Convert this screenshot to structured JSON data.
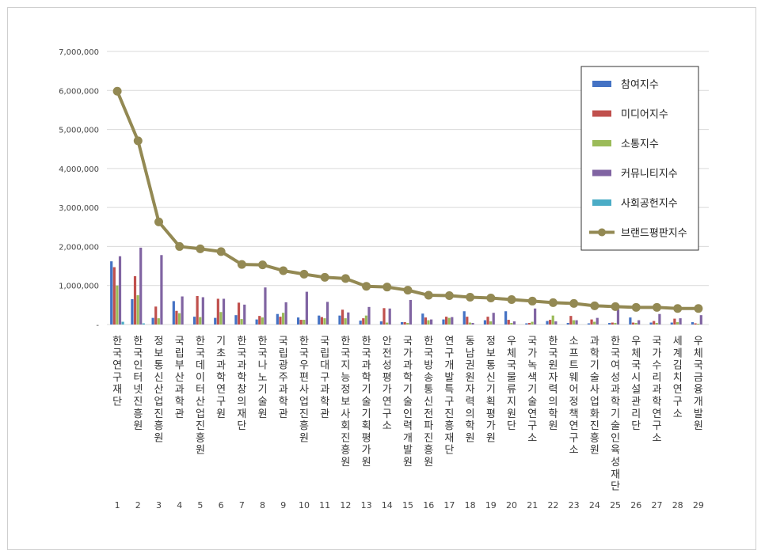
{
  "chart_data": {
    "type": "bar",
    "yticks": [
      "-",
      "1,000,000",
      "2,000,000",
      "3,000,000",
      "4,000,000",
      "5,000,000",
      "6,000,000",
      "7,000,000"
    ],
    "ylim": [
      0,
      7000000
    ],
    "grid": true,
    "legend_position": "top-right",
    "categories": [
      "한국연구재단",
      "한국인터넷진흥원",
      "정보통신산업진흥원",
      "국립부산과학관",
      "한국데이터산업진흥원",
      "기초과학연구원",
      "한국과학창의재단",
      "한국나노기술원",
      "국립광주과학관",
      "한국우편사업진흥원",
      "국립대구과학관",
      "한국지능정보사회진흥원",
      "한국과학기술기획평가원",
      "안전성평가연구소",
      "국가과학기술인력개발원",
      "한국방송통신전파진흥원",
      "연구개발특구진흥재단",
      "동남권원자력의학원",
      "정보통신기획평가원",
      "우체국물류지원단",
      "국가녹색기술연구소",
      "한국원자력의학원",
      "소프트웨어정책연구소",
      "과학기술사업화진흥원",
      "한국여성과학기술인육성재단",
      "우체국시설관리단",
      "국가수리과학연구소",
      "세계김치연구소",
      "우체국금융개발원"
    ],
    "index_labels": [
      "1",
      "2",
      "3",
      "4",
      "5",
      "6",
      "7",
      "8",
      "9",
      "10",
      "11",
      "12",
      "13",
      "14",
      "15",
      "16",
      "17",
      "18",
      "19",
      "20",
      "21",
      "22",
      "23",
      "24",
      "25",
      "26",
      "27",
      "28",
      "29"
    ],
    "series": [
      {
        "name": "참여지수",
        "kind": "bar",
        "color": "#4472C4",
        "values": [
          1620000,
          650000,
          170000,
          600000,
          200000,
          170000,
          240000,
          130000,
          270000,
          180000,
          230000,
          230000,
          100000,
          80000,
          60000,
          280000,
          130000,
          340000,
          110000,
          340000,
          30000,
          90000,
          40000,
          30000,
          40000,
          180000,
          50000,
          50000,
          60000
        ]
      },
      {
        "name": "미디어지수",
        "kind": "bar",
        "color": "#C0504D",
        "values": [
          1470000,
          1240000,
          460000,
          350000,
          730000,
          660000,
          560000,
          220000,
          200000,
          120000,
          190000,
          380000,
          160000,
          420000,
          60000,
          180000,
          200000,
          200000,
          200000,
          120000,
          40000,
          120000,
          220000,
          130000,
          50000,
          50000,
          90000,
          150000,
          30000
        ]
      },
      {
        "name": "소통지수",
        "kind": "bar",
        "color": "#9BBB59",
        "values": [
          1000000,
          750000,
          160000,
          290000,
          190000,
          320000,
          140000,
          180000,
          300000,
          120000,
          160000,
          160000,
          230000,
          50000,
          40000,
          110000,
          170000,
          50000,
          80000,
          40000,
          70000,
          230000,
          110000,
          70000,
          40000,
          40000,
          40000,
          60000,
          20000
        ]
      },
      {
        "name": "커뮤니티지수",
        "kind": "bar",
        "color": "#8064A2",
        "values": [
          1750000,
          1970000,
          1780000,
          720000,
          700000,
          660000,
          510000,
          950000,
          570000,
          840000,
          580000,
          310000,
          450000,
          410000,
          630000,
          130000,
          190000,
          40000,
          300000,
          80000,
          410000,
          80000,
          110000,
          170000,
          390000,
          110000,
          270000,
          160000,
          240000
        ]
      },
      {
        "name": "사회공헌지수",
        "kind": "bar",
        "color": "#4BACC6",
        "values": [
          70000,
          30000,
          0,
          0,
          0,
          0,
          0,
          0,
          0,
          0,
          0,
          0,
          0,
          0,
          0,
          0,
          0,
          0,
          0,
          0,
          0,
          0,
          0,
          0,
          0,
          0,
          0,
          0,
          0
        ]
      },
      {
        "name": "브랜드평판지수",
        "kind": "line",
        "color": "#938953",
        "values": [
          5980000,
          4710000,
          2630000,
          2000000,
          1940000,
          1870000,
          1540000,
          1530000,
          1380000,
          1290000,
          1210000,
          1180000,
          980000,
          960000,
          880000,
          750000,
          740000,
          700000,
          680000,
          640000,
          600000,
          560000,
          540000,
          480000,
          460000,
          440000,
          440000,
          410000,
          410000
        ]
      }
    ]
  }
}
